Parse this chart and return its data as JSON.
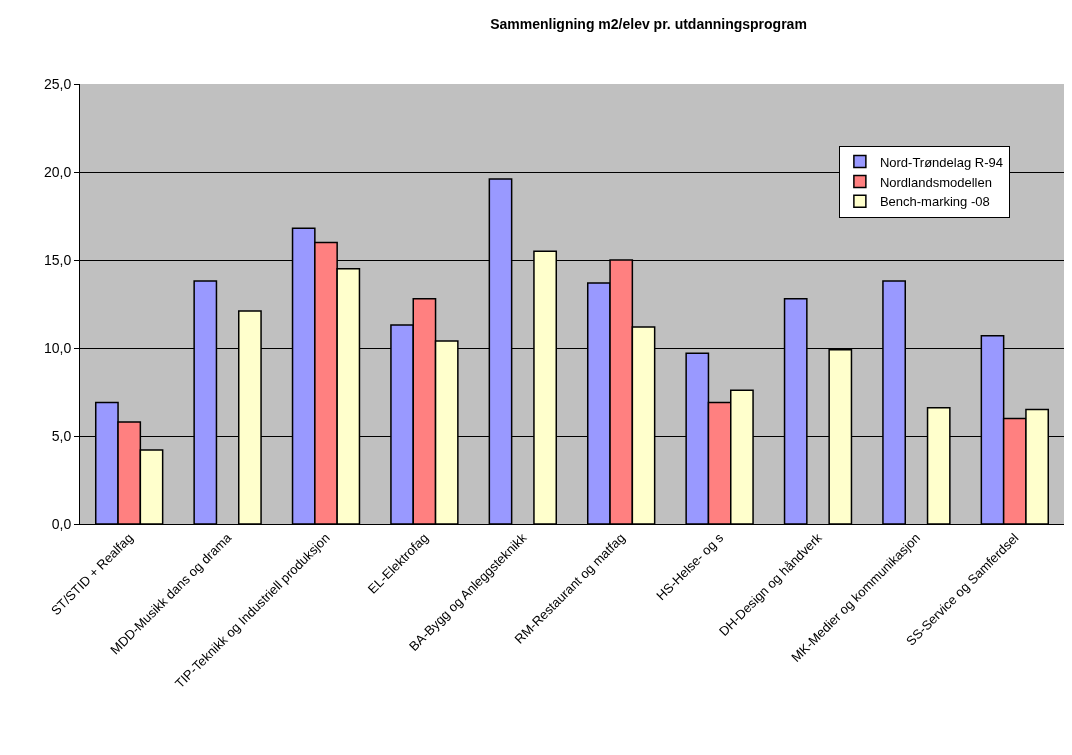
{
  "chart_data": {
    "type": "bar",
    "title": "Sammenligning m2/elev pr. utdanningsprogram",
    "categories": [
      "ST/STID + Realfag",
      "MDD-Musikk dans og drama",
      "TIP-Teknikk og Industriell produksjon",
      "EL-Elektrofag",
      "BA-Bygg og Anleggsteknikk",
      "RM-Restaurant og matfag",
      "HS-Helse- og s",
      "DH-Design og håndverk",
      "MK-Medier og kommunikasjon",
      "SS-Service og Samferdsel"
    ],
    "series": [
      {
        "name": "Nord-Trøndelag R-94",
        "color": "#9999ff",
        "values": [
          6.9,
          13.8,
          16.8,
          11.3,
          19.6,
          13.7,
          9.7,
          12.8,
          13.8,
          10.7
        ]
      },
      {
        "name": "Nordlandsmodellen",
        "color": "#ff8080",
        "values": [
          5.8,
          null,
          16.0,
          12.8,
          null,
          15.0,
          6.9,
          null,
          null,
          6.0
        ]
      },
      {
        "name": "Bench-marking -08",
        "color": "#ffffcc",
        "values": [
          4.2,
          12.1,
          14.5,
          10.4,
          15.5,
          11.2,
          7.6,
          9.9,
          6.6,
          6.5
        ]
      }
    ],
    "ylim": [
      0,
      25
    ],
    "yticks": [
      {
        "value": 0,
        "label": "0,0"
      },
      {
        "value": 5,
        "label": "5,0"
      },
      {
        "value": 10,
        "label": "10,0"
      },
      {
        "value": 15,
        "label": "15,0"
      },
      {
        "value": 20,
        "label": "20,0"
      },
      {
        "value": 25,
        "label": "25,0"
      }
    ],
    "grid": "y",
    "legend": "top right"
  }
}
